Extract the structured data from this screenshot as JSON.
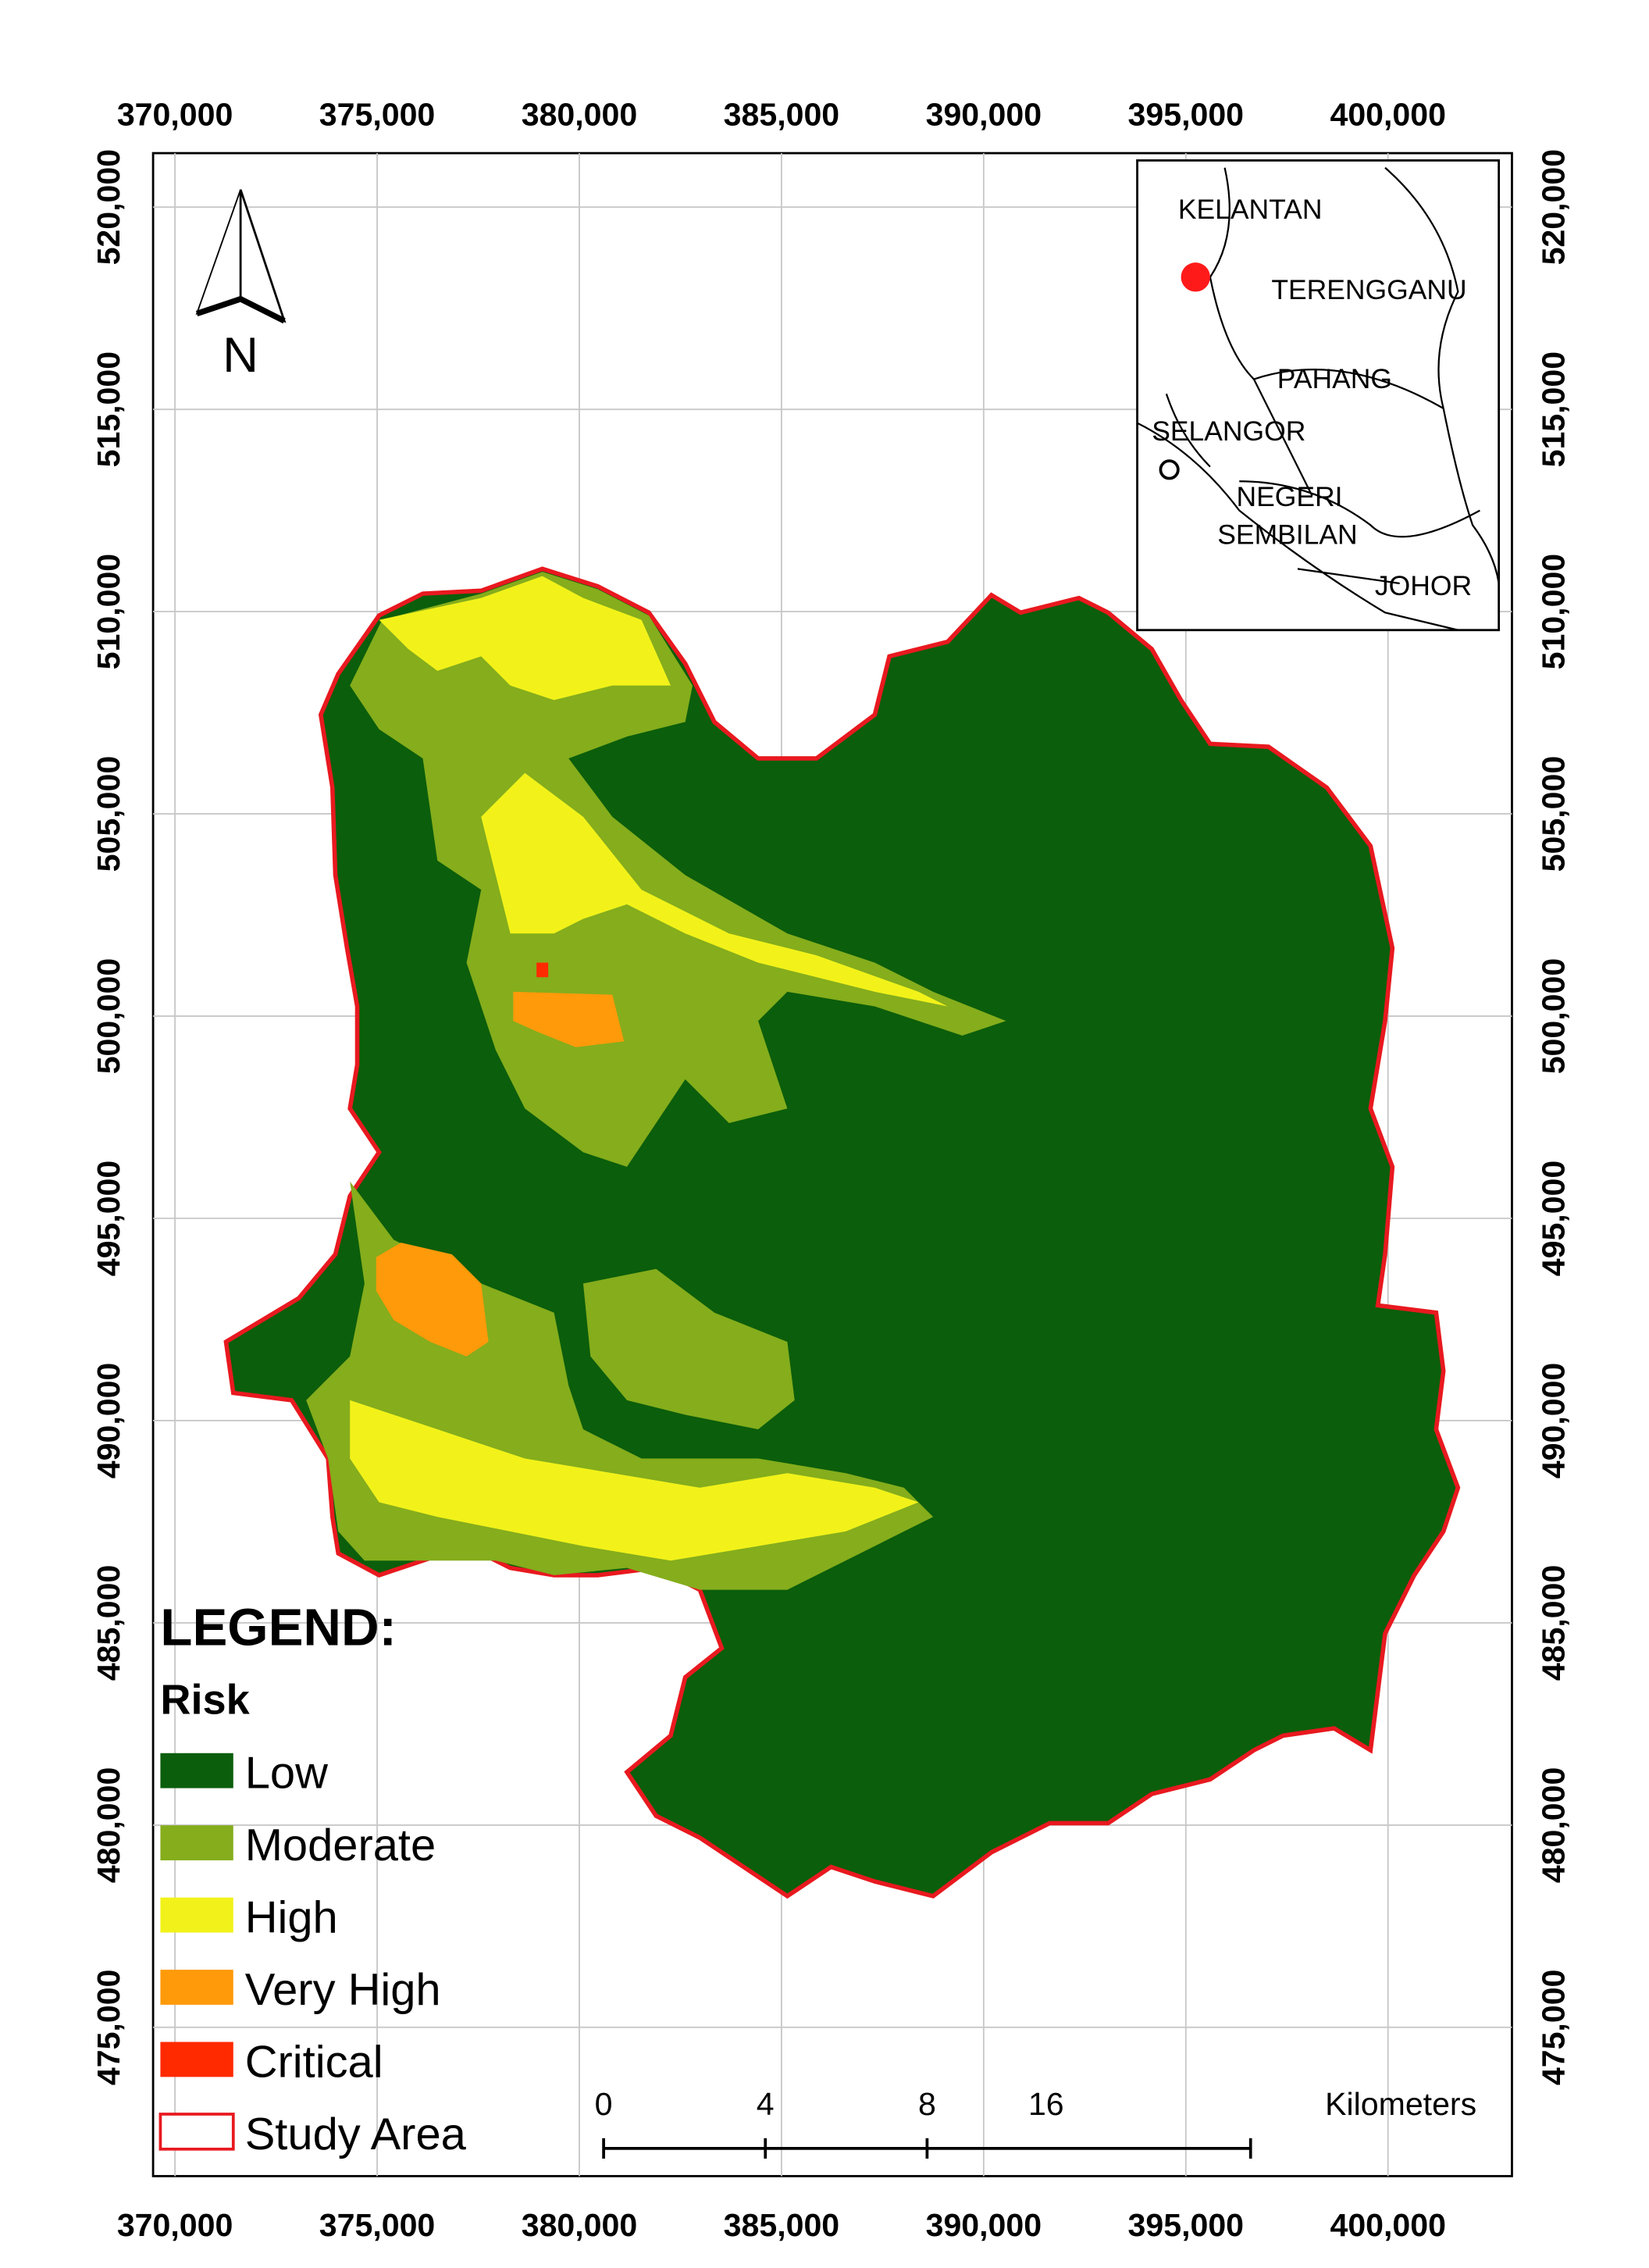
{
  "map": {
    "xlim": [
      369459,
      403065
    ],
    "ylim": [
      471322,
      521334
    ],
    "xticks": [
      {
        "value": 370000,
        "label": "370,000"
      },
      {
        "value": 375000,
        "label": "375,000"
      },
      {
        "value": 380000,
        "label": "380,000"
      },
      {
        "value": 385000,
        "label": "385,000"
      },
      {
        "value": 390000,
        "label": "390,000"
      },
      {
        "value": 395000,
        "label": "395,000"
      },
      {
        "value": 400000,
        "label": "400,000"
      }
    ],
    "yticks": [
      {
        "value": 475000,
        "label": "475,000"
      },
      {
        "value": 480000,
        "label": "480,000"
      },
      {
        "value": 485000,
        "label": "485,000"
      },
      {
        "value": 490000,
        "label": "490,000"
      },
      {
        "value": 495000,
        "label": "495,000"
      },
      {
        "value": 500000,
        "label": "500,000"
      },
      {
        "value": 505000,
        "label": "505,000"
      },
      {
        "value": 510000,
        "label": "510,000"
      },
      {
        "value": 515000,
        "label": "515,000"
      },
      {
        "value": 520000,
        "label": "520,000"
      }
    ],
    "grid": true,
    "north": "N",
    "legend": {
      "title": "LEGEND:",
      "subtitle": "Risk",
      "items": [
        {
          "label": "Low",
          "color": "#0b5e0b"
        },
        {
          "label": "Moderate",
          "color": "#85ad1c"
        },
        {
          "label": "High",
          "color": "#f2f21a"
        },
        {
          "label": "Very High",
          "color": "#ff9a0a"
        },
        {
          "label": "Critical",
          "color": "#ff2a00"
        },
        {
          "label": "Study Area",
          "color": "#ffffff",
          "outline": "#e8191f"
        }
      ]
    },
    "scale_bar": {
      "ticks": [
        0,
        4,
        8,
        16
      ],
      "unit": "Kilometers"
    },
    "inset": {
      "labels": [
        "KELANTAN",
        "TERENGGANU",
        "PAHANG",
        "SELANGOR",
        "NEGERI",
        "SEMBILAN",
        "JOHOR"
      ]
    }
  }
}
